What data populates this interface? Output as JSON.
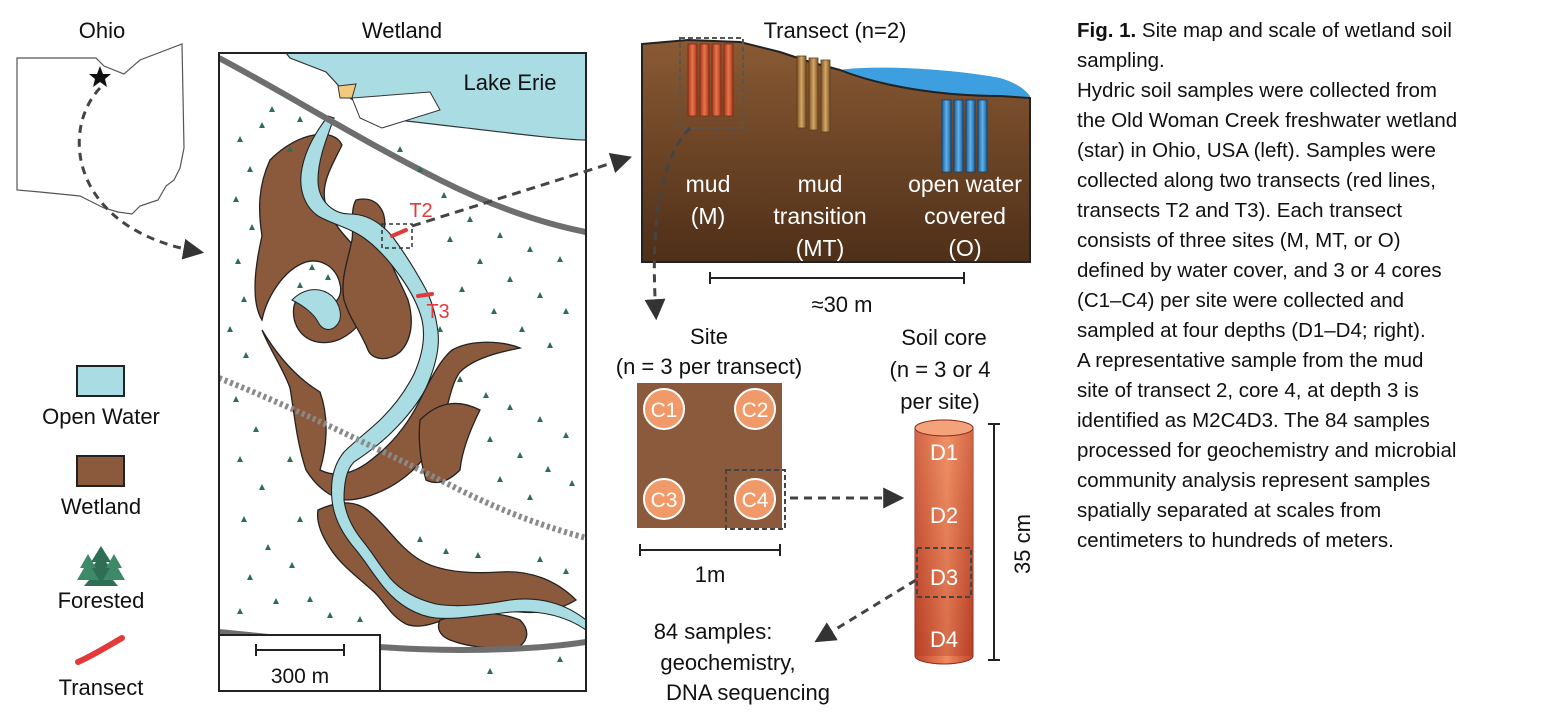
{
  "colors": {
    "water": "#a9dde3",
    "wetland": "#8b5a3c",
    "soil_dark": "#6b4326",
    "forest": "#2e6e55",
    "transect": "#e23a3a",
    "core_light": "#f09a6a",
    "core_dark": "#c64a2a",
    "lake_blue": "#3d9ee0",
    "road": "#6e6e6e"
  },
  "ohio": {
    "title": "Ohio"
  },
  "map": {
    "title": "Wetland",
    "lake_label": "Lake Erie",
    "t2": "T2",
    "t3": "T3",
    "scale_label": "300 m"
  },
  "legend": {
    "open_water": "Open Water",
    "wetland": "Wetland",
    "forested": "Forested",
    "transect": "Transect"
  },
  "transect_panel": {
    "title": "Transect (n=2)",
    "sites": [
      {
        "line1": "mud",
        "line2": "(M)",
        "line3": ""
      },
      {
        "line1": "mud",
        "line2": "transition",
        "line3": "(MT)"
      },
      {
        "line1": "open water",
        "line2": "covered",
        "line3": "(O)"
      }
    ],
    "scale_label": "≈30 m"
  },
  "site_panel": {
    "title_line1": "Site",
    "title_line2": "(n = 3 per transect)",
    "cores": [
      "C1",
      "C2",
      "C3",
      "C4"
    ],
    "scale_label": "1m"
  },
  "core_panel": {
    "title_line1": "Soil core",
    "title_line2": "(n = 3 or 4",
    "title_line3": "per site)",
    "depths": [
      "D1",
      "D2",
      "D3",
      "D4"
    ],
    "depth_label": "35 cm"
  },
  "samples": {
    "line1": "84 samples:",
    "line2": "geochemistry,",
    "line3": "DNA sequencing"
  },
  "caption": {
    "fig_label": "Fig. 1.",
    "title_rest": " Site map and scale of wetland soil",
    "lines": [
      "sampling.",
      "Hydric soil samples were collected from",
      "the Old Woman Creek freshwater wetland",
      "(star) in Ohio, USA (left). Samples were",
      "collected along two transects (red lines,",
      "transects T2 and T3). Each transect",
      "consists of three sites (M, MT, or O)",
      "defined by water cover, and 3 or 4 cores",
      "(C1–C4) per site were collected and",
      "sampled at four depths (D1–D4; right).",
      "A representative sample from the mud",
      "site of transect 2, core 4, at depth 3 is",
      "identified as M2C4D3. The 84 samples",
      "processed for geochemistry and microbial",
      "community analysis represent samples",
      "spatially separated at scales from",
      "centimeters to hundreds of meters."
    ]
  }
}
